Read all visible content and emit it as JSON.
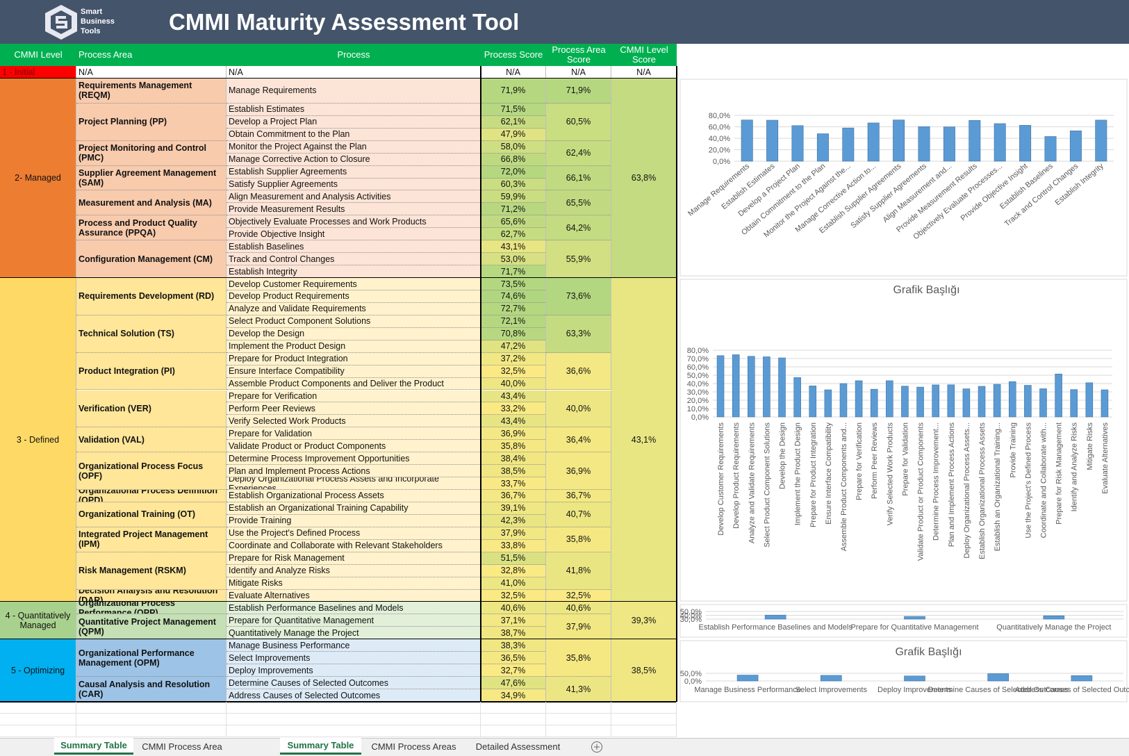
{
  "header": {
    "logo": [
      "Smart",
      "Business",
      "Tools"
    ],
    "title": "CMMI Maturity Assessment Tool"
  },
  "table": {
    "columns": [
      "CMMI Level",
      "Process Area",
      "Process",
      "Process Score",
      "Process Area Score",
      "CMMI Level Score"
    ],
    "levels": [
      {
        "name": "1 - Initial",
        "score": "N/A",
        "areas": [
          {
            "name": "N/A",
            "score": "N/A",
            "processes": [
              {
                "name": "N/A",
                "score": "N/A"
              }
            ]
          }
        ]
      },
      {
        "name": "2- Managed",
        "score": "63,8%",
        "areas": [
          {
            "name": "Requirements Management (REQM)",
            "score": "71,9%",
            "processes": [
              {
                "name": "Manage Requirements",
                "score": "71,9%"
              }
            ]
          },
          {
            "name": "Project Planning (PP)",
            "score": "60,5%",
            "processes": [
              {
                "name": "Establish Estimates",
                "score": "71,5%"
              },
              {
                "name": "Develop a Project Plan",
                "score": "62,1%"
              },
              {
                "name": "Obtain Commitment to the Plan",
                "score": "47,9%"
              }
            ]
          },
          {
            "name": "Project Monitoring and Control (PMC)",
            "score": "62,4%",
            "processes": [
              {
                "name": "Monitor the Project Against the Plan",
                "score": "58,0%"
              },
              {
                "name": "Manage Corrective Action to Closure",
                "score": "66,8%"
              }
            ]
          },
          {
            "name": "Supplier Agreement Management (SAM)",
            "score": "66,1%",
            "processes": [
              {
                "name": "Establish Supplier Agreements",
                "score": "72,0%"
              },
              {
                "name": "Satisfy Supplier Agreements",
                "score": "60,3%"
              }
            ]
          },
          {
            "name": "Measurement and Analysis (MA)",
            "score": "65,5%",
            "processes": [
              {
                "name": "Align Measurement and Analysis Activities",
                "score": "59,9%"
              },
              {
                "name": "Provide Measurement Results",
                "score": "71,2%"
              }
            ]
          },
          {
            "name": "Process and Product Quality Assurance (PPQA)",
            "score": "64,2%",
            "processes": [
              {
                "name": "Objectively Evaluate Processes and Work Products",
                "score": "65,6%"
              },
              {
                "name": "Provide Objective Insight",
                "score": "62,7%"
              }
            ]
          },
          {
            "name": "Configuration Management (CM)",
            "score": "55,9%",
            "processes": [
              {
                "name": "Establish Baselines",
                "score": "43,1%"
              },
              {
                "name": "Track and Control Changes",
                "score": "53,0%"
              },
              {
                "name": "Establish Integrity",
                "score": "71,7%"
              }
            ]
          }
        ]
      },
      {
        "name": "3 - Defined",
        "score": "43,1%",
        "areas": [
          {
            "name": "Requirements Development (RD)",
            "score": "73,6%",
            "processes": [
              {
                "name": "Develop Customer Requirements",
                "score": "73,5%"
              },
              {
                "name": "Develop Product Requirements",
                "score": "74,6%"
              },
              {
                "name": "Analyze and Validate Requirements",
                "score": "72,7%"
              }
            ]
          },
          {
            "name": "Technical Solution (TS)",
            "score": "63,3%",
            "processes": [
              {
                "name": "Select Product Component Solutions",
                "score": "72,1%"
              },
              {
                "name": "Develop the Design",
                "score": "70,8%"
              },
              {
                "name": "Implement the Product Design",
                "score": "47,2%"
              }
            ]
          },
          {
            "name": "Product Integration (PI)",
            "score": "36,6%",
            "processes": [
              {
                "name": "Prepare for Product Integration",
                "score": "37,2%"
              },
              {
                "name": "Ensure Interface Compatibility",
                "score": "32,5%"
              },
              {
                "name": "Assemble Product Components and Deliver the Product",
                "score": "40,0%"
              }
            ]
          },
          {
            "name": "Verification (VER)",
            "score": "40,0%",
            "processes": [
              {
                "name": "Prepare for Verification",
                "score": "43,4%"
              },
              {
                "name": "Perform Peer Reviews",
                "score": "33,2%"
              },
              {
                "name": "Verify Selected Work Products",
                "score": "43,4%"
              }
            ]
          },
          {
            "name": "Validation (VAL)",
            "score": "36,4%",
            "processes": [
              {
                "name": "Prepare for Validation",
                "score": "36,9%"
              },
              {
                "name": "Validate Product or Product Components",
                "score": "35,8%"
              }
            ]
          },
          {
            "name": "Organizational Process Focus (OPF)",
            "score": "36,9%",
            "processes": [
              {
                "name": "Determine Process Improvement Opportunities",
                "score": "38,4%"
              },
              {
                "name": "Plan and Implement Process Actions",
                "score": "38,5%"
              },
              {
                "name": "Deploy Organizational Process Assets and Incorporate Experiences",
                "score": "33,7%"
              }
            ]
          },
          {
            "name": "Organizational Process Definition (OPD)",
            "score": "36,7%",
            "processes": [
              {
                "name": "Establish Organizational Process Assets",
                "score": "36,7%"
              }
            ]
          },
          {
            "name": "Organizational Training (OT)",
            "score": "40,7%",
            "processes": [
              {
                "name": "Establish an Organizational Training Capability",
                "score": "39,1%"
              },
              {
                "name": "Provide Training",
                "score": "42,3%"
              }
            ]
          },
          {
            "name": "Integrated Project Management (IPM)",
            "score": "35,8%",
            "processes": [
              {
                "name": "Use the Project's Defined Process",
                "score": "37,9%"
              },
              {
                "name": "Coordinate and Collaborate with Relevant Stakeholders",
                "score": "33,8%"
              }
            ]
          },
          {
            "name": "Risk Management (RSKM)",
            "score": "41,8%",
            "processes": [
              {
                "name": "Prepare for Risk Management",
                "score": "51,5%"
              },
              {
                "name": "Identify and Analyze Risks",
                "score": "32,8%"
              },
              {
                "name": "Mitigate Risks",
                "score": "41,0%"
              }
            ]
          },
          {
            "name": "Decision Analysis and Resolution (DAR)",
            "score": "32,5%",
            "processes": [
              {
                "name": "Evaluate Alternatives",
                "score": "32,5%"
              }
            ]
          }
        ]
      },
      {
        "name": "4 - Quantitatively Managed",
        "score": "39,3%",
        "areas": [
          {
            "name": "Organizational Process Performance (OPP)",
            "score": "40,6%",
            "processes": [
              {
                "name": "Establish Performance Baselines and Models",
                "score": "40,6%"
              }
            ]
          },
          {
            "name": "Quantitative Project Management (QPM)",
            "score": "37,9%",
            "processes": [
              {
                "name": "Prepare for Quantitative Management",
                "score": "37,1%"
              },
              {
                "name": "Quantitatively Manage the Project",
                "score": "38,7%"
              }
            ]
          }
        ]
      },
      {
        "name": "5 - Optimizing",
        "score": "38,5%",
        "areas": [
          {
            "name": "Organizational Performance Management (OPM)",
            "score": "35,8%",
            "processes": [
              {
                "name": "Manage Business Performance",
                "score": "38,3%"
              },
              {
                "name": "Select Improvements",
                "score": "36,5%"
              },
              {
                "name": "Deploy Improvements",
                "score": "32,7%"
              }
            ]
          },
          {
            "name": "Causal Analysis and Resolution (CAR)",
            "score": "41,3%",
            "processes": [
              {
                "name": "Determine Causes of Selected Outcomes",
                "score": "47,6%"
              },
              {
                "name": "Address Causes of Selected Outcomes",
                "score": "34,9%"
              }
            ]
          }
        ]
      }
    ]
  },
  "chart_data": [
    {
      "type": "bar",
      "color": "#5b9bd5",
      "grid": true,
      "categories": [
        "Manage Requirements",
        "Establish Estimates",
        "Develop a Project Plan",
        "Obtain Commitment to the Plan",
        "Monitor the Project Against the...",
        "Manage Corrective Action to...",
        "Establish Supplier Agreements",
        "Satisfy Supplier Agreements",
        "Align Measurement and...",
        "Provide Measurement Results",
        "Objectively Evaluate Processes...",
        "Provide Objective Insight",
        "Establish Baselines",
        "Track and Control Changes",
        "Establish Integrity"
      ],
      "values": [
        71.9,
        71.5,
        62.1,
        47.9,
        58.0,
        66.8,
        72.0,
        60.3,
        59.9,
        71.2,
        65.6,
        62.7,
        43.1,
        53.0,
        71.7
      ],
      "ylim": [
        0,
        80
      ],
      "yticks": [
        {
          "value": 0,
          "label": "0,0%"
        },
        {
          "value": 20,
          "label": "20,0%"
        },
        {
          "value": 40,
          "label": "40,0%"
        },
        {
          "value": 60,
          "label": "60,0%"
        },
        {
          "value": 80,
          "label": "80,0%"
        }
      ]
    },
    {
      "type": "bar",
      "title": "Grafik Başlığı",
      "color": "#5b9bd5",
      "grid": true,
      "categories": [
        "Develop Customer Requirements",
        "Develop Product Requirements",
        "Analyze and Validate Requirements",
        "Select Product Component Solutions",
        "Develop the Design",
        "Implement the Product Design",
        "Prepare for Product Integration",
        "Ensure Interface Compatibility",
        "Assemble Product Components and...",
        "Prepare for Verification",
        "Perform Peer Reviews",
        "Verify Selected Work Products",
        "Prepare for Validation",
        "Validate Product or Product Components",
        "Determine Process Improvement...",
        "Plan and Implement Process Actions",
        "Deploy Organizational Process Assets...",
        "Establish Organizational Process Assets",
        "Establish an Organizational Training...",
        "Provide Training",
        "Use the Project's Defined Process",
        "Coordinate and Collaborate with...",
        "Prepare for Risk Management",
        "Identify and Analyze Risks",
        "Mitigate Risks",
        "Evaluate Alternatives"
      ],
      "values": [
        73.5,
        74.6,
        72.7,
        72.1,
        70.8,
        47.2,
        37.2,
        32.5,
        40.0,
        43.4,
        33.2,
        43.4,
        36.9,
        35.8,
        38.4,
        38.5,
        33.7,
        36.7,
        39.1,
        42.3,
        37.9,
        33.8,
        51.5,
        32.8,
        41.0,
        32.5
      ],
      "ylim": [
        0,
        80
      ],
      "yticks": [
        {
          "value": 0,
          "label": "0,0%"
        },
        {
          "value": 10,
          "label": "10,0%"
        },
        {
          "value": 20,
          "label": "20,0%"
        },
        {
          "value": 30,
          "label": "30,0%"
        },
        {
          "value": 40,
          "label": "40,0%"
        },
        {
          "value": 50,
          "label": "50,0%"
        },
        {
          "value": 60,
          "label": "60,0%"
        },
        {
          "value": 70,
          "label": "70,0%"
        },
        {
          "value": 80,
          "label": "80,0%"
        }
      ]
    },
    {
      "type": "bar",
      "color": "#5b9bd5",
      "grid": true,
      "categories": [
        "Establish Performance Baselines and Models",
        "Prepare for Quantitative Management",
        "Quantitatively Manage the Project"
      ],
      "values": [
        40.6,
        37.1,
        38.7
      ],
      "ylim": [
        30,
        50
      ],
      "yticks": [
        {
          "value": 30,
          "label": "30,0%"
        },
        {
          "value": 40,
          "label": "40,0%"
        },
        {
          "value": 50,
          "label": "50,0%"
        }
      ]
    },
    {
      "type": "bar",
      "title": "Grafik Başlığı",
      "color": "#5b9bd5",
      "grid": true,
      "categories": [
        "Manage Business Performance",
        "Select Improvements",
        "Deploy Improvements",
        "Determine Causes of Selected Outcomes",
        "Address Causes of Selected Outcomes"
      ],
      "values": [
        38.3,
        36.5,
        32.7,
        47.6,
        34.9
      ],
      "ylim": [
        0,
        50
      ],
      "yticks": [
        {
          "value": 0,
          "label": "0,0%"
        },
        {
          "value": 50,
          "label": "50,0%"
        }
      ]
    }
  ],
  "tabs": {
    "left": [
      "Summary Table",
      "CMMI Process Area"
    ],
    "right": [
      "Summary Table",
      "CMMI Process Areas",
      "Detailed Assessment"
    ]
  }
}
